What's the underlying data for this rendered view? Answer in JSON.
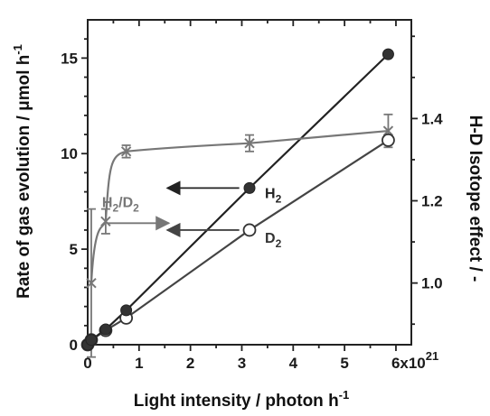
{
  "chart_data": {
    "type": "line",
    "xlabel": "Light intensity / photon h",
    "xlabel_sup": "-1",
    "ylabel": "Rate of gas evolution / μmol h",
    "ylabel_sup": "-1",
    "y2label": "H-D Isotope effect / -",
    "xlim": [
      0,
      6.3
    ],
    "ylim": [
      0,
      17
    ],
    "y2lim": [
      0.85,
      1.64
    ],
    "x_ticks": [
      0,
      1,
      2,
      3,
      4,
      5,
      6
    ],
    "x_tick_labels": [
      "0",
      "1",
      "2",
      "3",
      "4",
      "5",
      "6x10"
    ],
    "x_tick_exponent": "21",
    "y_ticks": [
      0,
      5,
      10,
      15
    ],
    "y_tick_labels": [
      "0",
      "5",
      "10",
      "15"
    ],
    "y2_ticks": [
      1.0,
      1.2,
      1.4
    ],
    "y2_tick_labels": [
      "1.0",
      "1.2",
      "1.4"
    ],
    "series": [
      {
        "name": "H2",
        "axis": "left",
        "marker": "filled-circle",
        "color": "#222222",
        "x": [
          0.0,
          0.07,
          0.35,
          0.75,
          3.15,
          5.85
        ],
        "y": [
          0.0,
          0.25,
          0.8,
          1.8,
          8.2,
          15.2
        ]
      },
      {
        "name": "D2",
        "axis": "left",
        "marker": "open-circle",
        "color": "#444444",
        "x": [
          0.0,
          0.07,
          0.35,
          0.75,
          3.15,
          5.85
        ],
        "y": [
          0.0,
          0.25,
          0.75,
          1.4,
          6.0,
          10.7
        ]
      },
      {
        "name": "H2/D2",
        "axis": "right",
        "marker": "x",
        "color": "#777777",
        "x": [
          0.07,
          0.35,
          0.75,
          3.15,
          5.85
        ],
        "y": [
          1.0,
          1.15,
          1.32,
          1.34,
          1.37
        ],
        "err": [
          0.18,
          0.03,
          0.015,
          0.02,
          0.04
        ]
      }
    ],
    "annotations": {
      "h2_label": "H",
      "h2_sub": "2",
      "d2_label": "D",
      "d2_sub": "2",
      "ratio_label_a": "H",
      "ratio_label_a_sub": "2",
      "ratio_label_b": "/D",
      "ratio_label_b_sub": "2"
    }
  }
}
